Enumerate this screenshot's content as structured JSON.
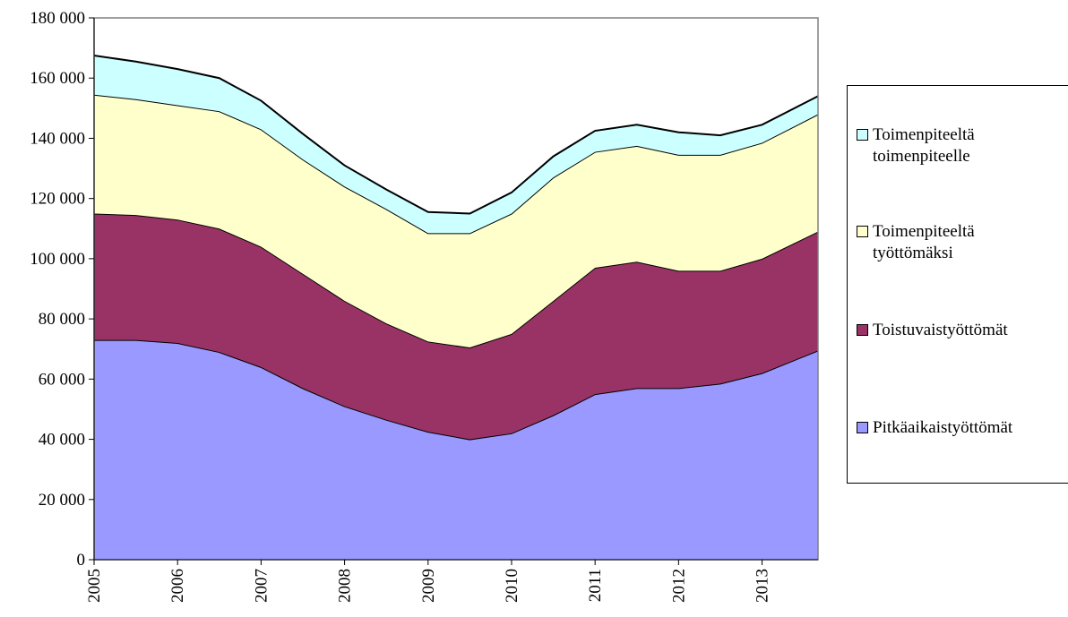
{
  "chart_data": {
    "type": "stacked_area",
    "x": [
      2005,
      2005.5,
      2006,
      2006.5,
      2007,
      2007.5,
      2008,
      2008.5,
      2009,
      2009.5,
      2010,
      2010.5,
      2011,
      2011.5,
      2012,
      2012.5,
      2013,
      2013.67
    ],
    "series": [
      {
        "name": "Pitkäaikaistyöttömät",
        "color": "#9999ff",
        "values": [
          73000,
          73000,
          72000,
          69000,
          64000,
          57000,
          51000,
          46500,
          42500,
          40000,
          42000,
          48000,
          55000,
          57000,
          57000,
          58500,
          62000,
          69500
        ]
      },
      {
        "name": "Toistuvaistyöttömät",
        "color": "#993366",
        "values": [
          42000,
          41500,
          41000,
          41000,
          40000,
          38000,
          35000,
          32000,
          30000,
          30500,
          33000,
          38000,
          42000,
          42000,
          39000,
          37500,
          38000,
          39500
        ]
      },
      {
        "name": "Toimenpiteeltä työttömäksi",
        "color": "#ffffcc",
        "values": [
          39500,
          38500,
          38000,
          39000,
          39000,
          38000,
          38000,
          38000,
          36000,
          38000,
          40000,
          41000,
          38500,
          38500,
          38500,
          38500,
          38500,
          39000
        ]
      },
      {
        "name": "Toimenpiteeltä toimenpiteelle",
        "color": "#ccffff",
        "values": [
          13000,
          12500,
          12000,
          11000,
          9500,
          8500,
          7000,
          6500,
          7000,
          6500,
          7000,
          7000,
          7000,
          7000,
          7500,
          6500,
          6000,
          6000
        ]
      }
    ],
    "xlim": [
      2005,
      2013.67
    ],
    "xticks": [
      2005,
      2006,
      2007,
      2008,
      2009,
      2010,
      2011,
      2012,
      2013
    ],
    "ylim": [
      0,
      180000
    ],
    "yticks": [
      0,
      {
        "value": 20000,
        "label": "20 000"
      },
      {
        "value": 40000,
        "label": "40 000"
      },
      {
        "value": 60000,
        "label": "60 000"
      },
      {
        "value": 80000,
        "label": "80 000"
      },
      {
        "value": 100000,
        "label": "100 000"
      },
      {
        "value": 120000,
        "label": "120 000"
      },
      {
        "value": 140000,
        "label": "140 000"
      },
      {
        "value": 160000,
        "label": "160 000"
      },
      {
        "value": 180000,
        "label": "180 000"
      }
    ],
    "legend": "right"
  }
}
